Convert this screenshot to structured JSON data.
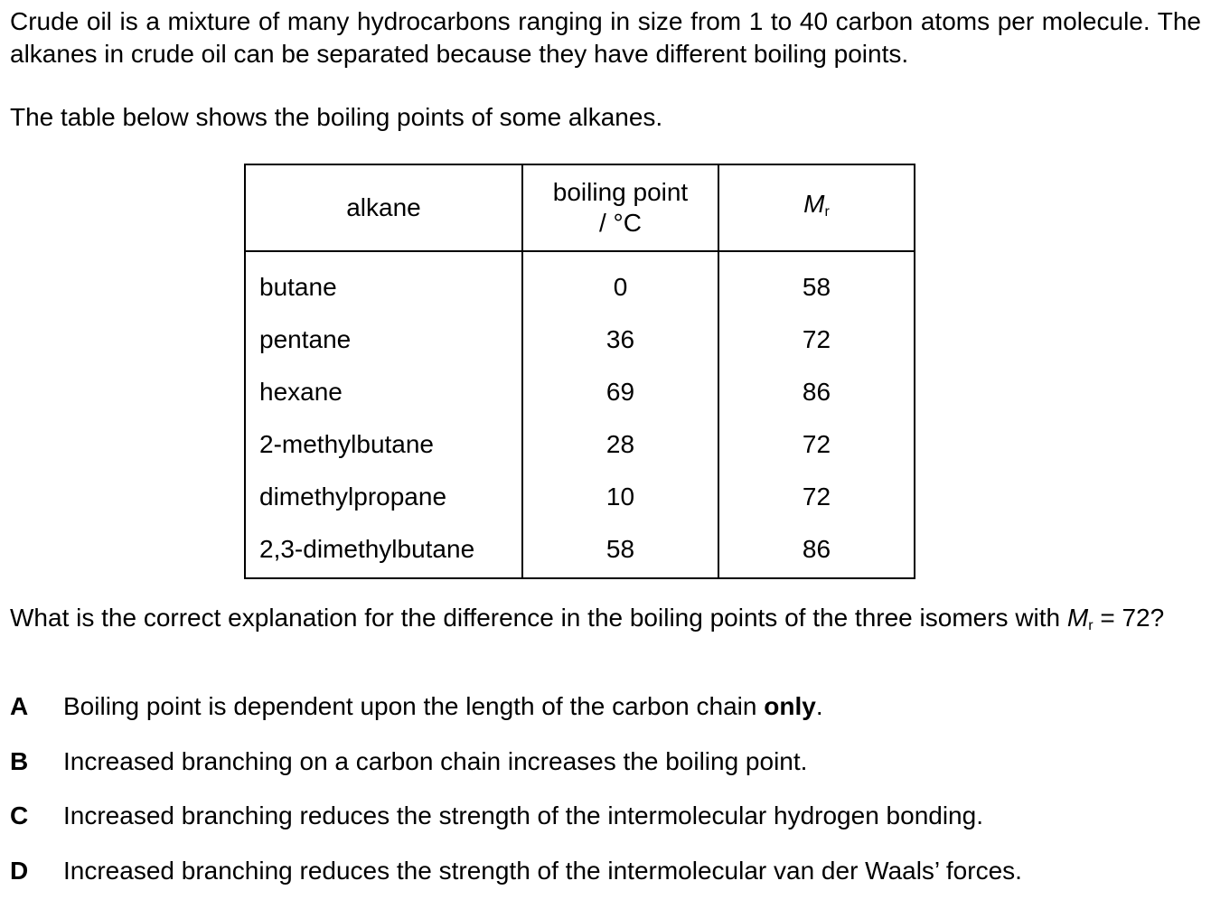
{
  "intro": "Crude oil is a mixture of many hydrocarbons ranging in size from 1 to 40 carbon atoms per molecule. The alkanes in crude oil can be separated because they have different boiling points.",
  "table_intro": "The table below shows the boiling points of some alkanes.",
  "table": {
    "headers": {
      "alkane": "alkane",
      "bp_line1": "boiling point",
      "bp_line2": "/ °C",
      "mr_symbol": "M",
      "mr_sub": "r"
    },
    "rows": [
      {
        "alkane": "butane",
        "bp": "0",
        "mr": "58"
      },
      {
        "alkane": "pentane",
        "bp": "36",
        "mr": "72"
      },
      {
        "alkane": "hexane",
        "bp": "69",
        "mr": "86"
      },
      {
        "alkane": "2-methylbutane",
        "bp": "28",
        "mr": "72"
      },
      {
        "alkane": "dimethylpropane",
        "bp": "10",
        "mr": "72"
      },
      {
        "alkane": "2,3-dimethylbutane",
        "bp": "58",
        "mr": "86"
      }
    ]
  },
  "question": {
    "text": "What is the correct explanation for the difference in the boiling points of the three isomers with",
    "mr_symbol": "M",
    "mr_sub": "r",
    "tail": " = 72?"
  },
  "options": [
    {
      "letter": "A",
      "text": "Boiling point is dependent upon the length of the carbon chain ",
      "emphasis": "only",
      "after": "."
    },
    {
      "letter": "B",
      "text": "Increased branching on a carbon chain increases the boiling point."
    },
    {
      "letter": "C",
      "text": "Increased branching reduces the strength of the intermolecular hydrogen bonding."
    },
    {
      "letter": "D",
      "text": "Increased branching reduces the strength of the intermolecular van der Waals’ forces."
    }
  ]
}
